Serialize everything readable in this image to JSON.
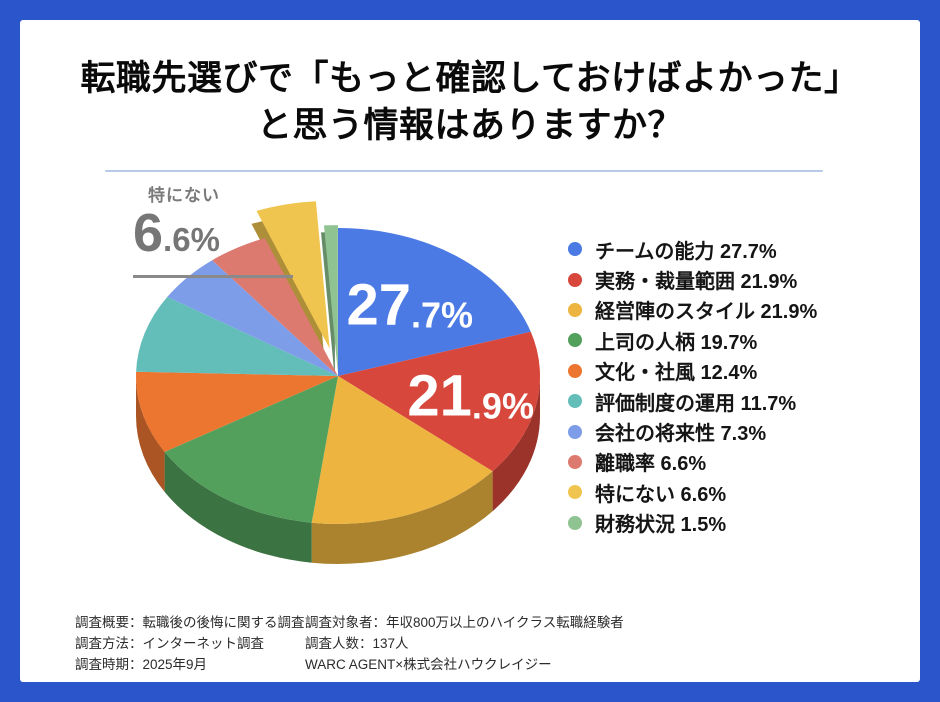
{
  "frame": {
    "border_color": "#2B55CB",
    "card_color": "#ffffff",
    "divider_color": "#B7CBE9"
  },
  "title": {
    "line1": "転職先選びで「もっと確認しておけばよかった」",
    "line2": "と思う情報はありますか？"
  },
  "chart_data": {
    "type": "pie",
    "unit": "%",
    "start_angle_deg": 0,
    "clockwise": true,
    "legend_position": "right",
    "slices": [
      {
        "label": "チームの能力",
        "value": 27.7,
        "color": "#4B7AE5",
        "big_label": true,
        "label_r": 0.6
      },
      {
        "label": "実務・裁量範囲",
        "value": 21.9,
        "color": "#D8473C",
        "big_label": true,
        "label_r": 0.67
      },
      {
        "label": "経営陣のスタイル",
        "value": 21.9,
        "color": "#EDB440"
      },
      {
        "label": "上司の人柄",
        "value": 19.7,
        "color": "#53A05C"
      },
      {
        "label": "文化・社風",
        "value": 12.4,
        "color": "#EC7630"
      },
      {
        "label": "評価制度の運用",
        "value": 11.7,
        "color": "#63BEBA"
      },
      {
        "label": "会社の将来性",
        "value": 7.3,
        "color": "#7E9DE9"
      },
      {
        "label": "離職率",
        "value": 6.6,
        "color": "#DD7A70"
      },
      {
        "label": "特にない",
        "value": 6.6,
        "color": "#F0C54F",
        "exploded": true
      },
      {
        "label": "財務状況",
        "value": 1.5,
        "color": "#8FC391",
        "exploded_slight": true
      }
    ]
  },
  "callout": {
    "label": "特にない",
    "value_int": "6",
    "value_frac": ".6%"
  },
  "footer": {
    "left": [
      "調査概要：転職後の後悔に関する調査",
      "調査方法：インターネット調査",
      "調査時期：2025年9月"
    ],
    "right": [
      "調査対象者：年収800万以上のハイクラス転職経験者",
      "調査人数：137人",
      "WARC AGENT×株式会社ハウクレイジー"
    ]
  }
}
